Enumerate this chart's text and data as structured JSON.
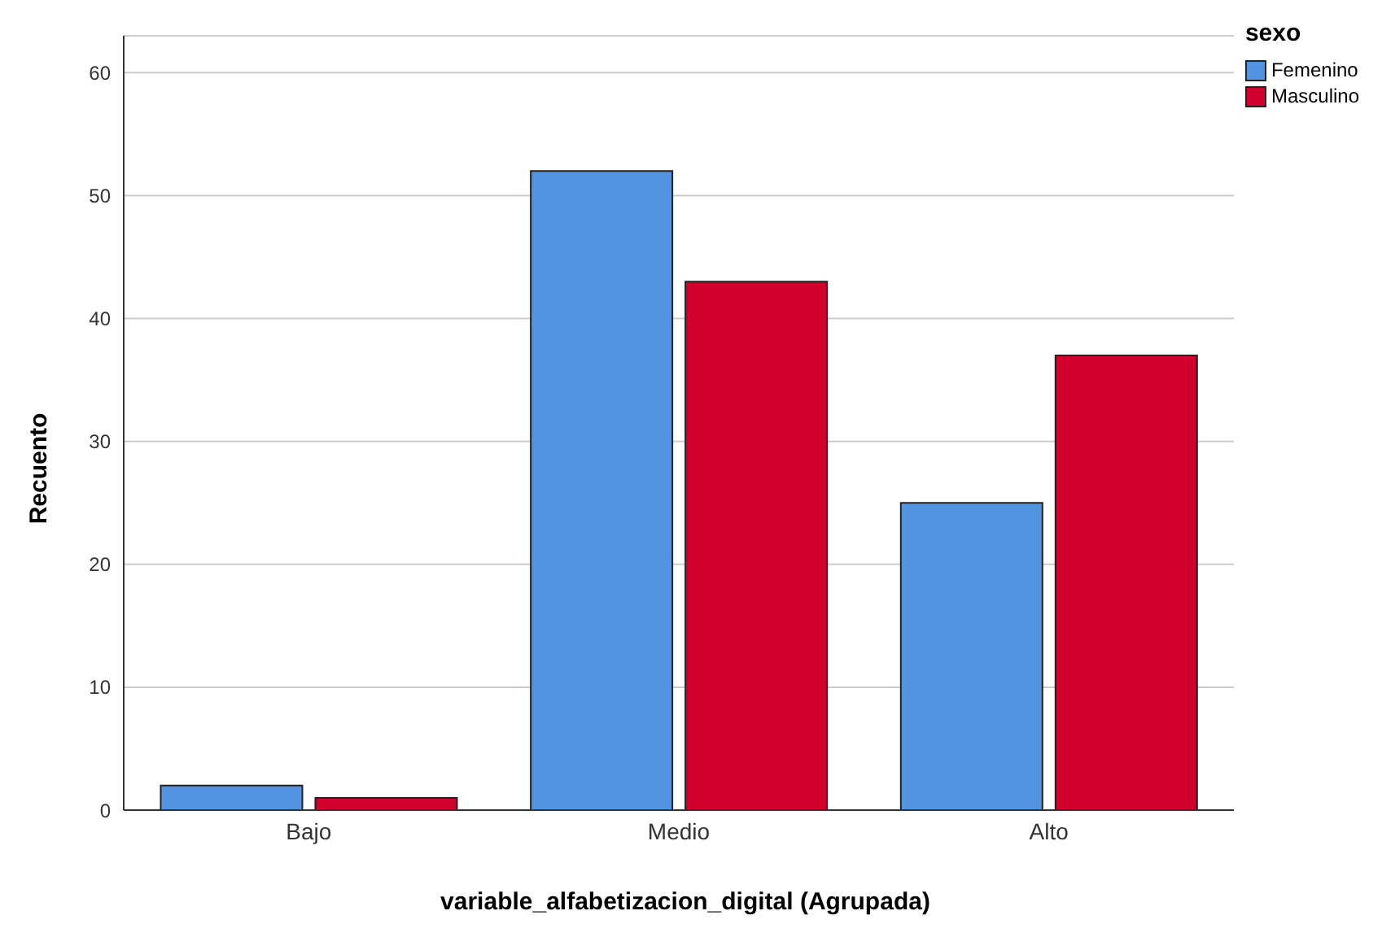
{
  "chart_data": {
    "type": "bar",
    "xlabel": "variable_alfabetizacion_digital (Agrupada)",
    "ylabel": "Recuento",
    "legend_title": "sexo",
    "categories": [
      "Bajo",
      "Medio",
      "Alto"
    ],
    "series": [
      {
        "name": "Femenino",
        "color": "#5294e2",
        "values": [
          2,
          52,
          25
        ]
      },
      {
        "name": "Masculino",
        "color": "#d2002c",
        "values": [
          1,
          43,
          37
        ]
      }
    ],
    "ylim": [
      0,
      63
    ],
    "yticks": [
      0,
      10,
      20,
      30,
      40,
      50,
      60
    ],
    "grid": "y",
    "legend": "top right"
  }
}
